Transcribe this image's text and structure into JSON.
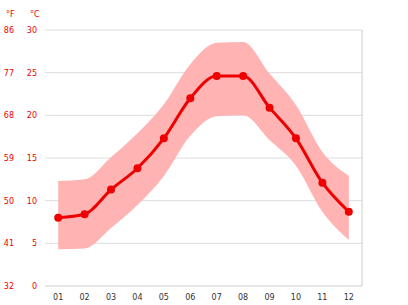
{
  "chart_data": {
    "type": "line",
    "y_label": "°C",
    "y2_label": "°F",
    "x": [
      1,
      2,
      3,
      4,
      5,
      6,
      7,
      8,
      9,
      10,
      11,
      12
    ],
    "xlim": [
      0.5,
      12.5
    ],
    "xticks": [
      {
        "value": 1,
        "label": "01"
      },
      {
        "value": 2,
        "label": "02"
      },
      {
        "value": 3,
        "label": "03"
      },
      {
        "value": 4,
        "label": "04"
      },
      {
        "value": 5,
        "label": "05"
      },
      {
        "value": 6,
        "label": "06"
      },
      {
        "value": 7,
        "label": "07"
      },
      {
        "value": 8,
        "label": "08"
      },
      {
        "value": 9,
        "label": "09"
      },
      {
        "value": 10,
        "label": "10"
      },
      {
        "value": 11,
        "label": "11"
      },
      {
        "value": 12,
        "label": "12"
      }
    ],
    "values": [
      8.0,
      8.4,
      11.3,
      13.8,
      17.3,
      22.0,
      24.6,
      24.6,
      20.9,
      17.3,
      12.1,
      8.7
    ],
    "low": [
      4.3,
      4.4,
      6.8,
      9.5,
      12.9,
      17.6,
      19.9,
      20.0,
      17.1,
      14.1,
      8.7,
      5.4
    ],
    "high": [
      12.3,
      12.5,
      15.1,
      17.9,
      21.3,
      26.0,
      28.5,
      28.6,
      24.9,
      21.2,
      15.7,
      12.9
    ],
    "color": "#ee0000",
    "band_color": "#ffb3b3",
    "ylim": [
      0,
      30
    ],
    "yticks": [
      0,
      5,
      10,
      15,
      20,
      25,
      30
    ],
    "y2lim": [
      32,
      86
    ],
    "y2ticks": [
      32,
      41,
      50,
      59,
      68,
      77,
      86
    ],
    "grid": true,
    "marker": "circle"
  }
}
